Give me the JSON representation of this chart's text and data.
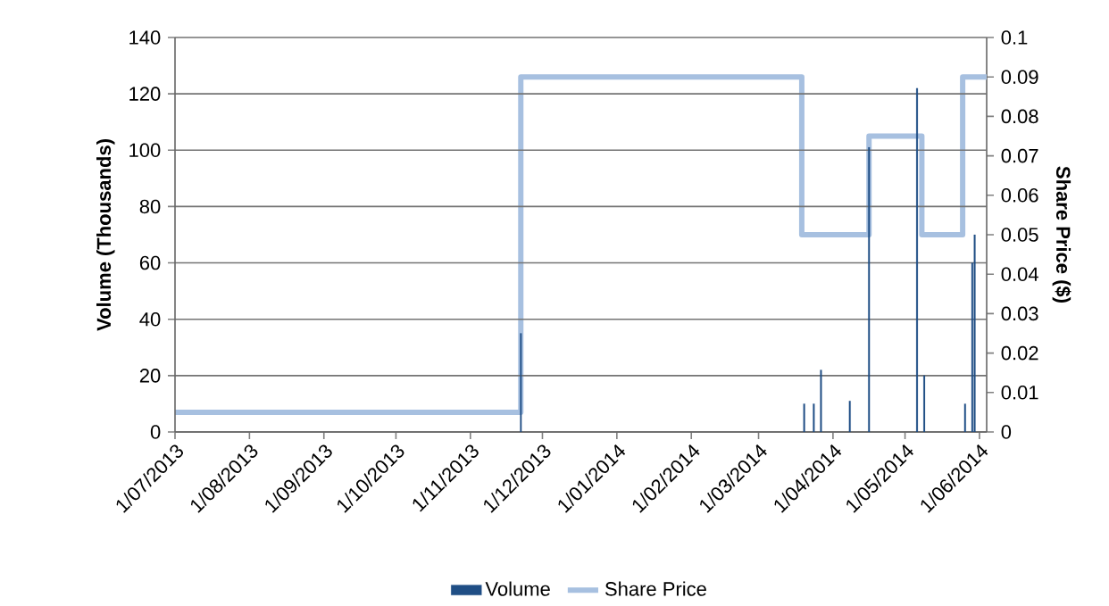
{
  "chart_data": {
    "type": "bar",
    "ylabel": "Volume (Thousands)",
    "y2label": "Share Price ($)",
    "series": [
      {
        "name": "Volume",
        "color": "#1f4e85",
        "x": [
          "2013-11-22",
          "2014-03-20",
          "2014-03-24",
          "2014-03-27",
          "2014-04-08",
          "2014-04-16",
          "2014-05-06",
          "2014-05-09",
          "2014-05-26",
          "2014-05-29",
          "2014-05-30"
        ],
        "values": [
          35,
          10,
          10,
          22,
          11,
          101,
          122,
          20,
          10,
          60,
          70
        ]
      },
      {
        "name": "Share Price",
        "type": "step",
        "axis": "y2",
        "color": "#a7c0e0",
        "x": [
          "2013-07-01",
          "2013-11-22",
          "2014-03-19",
          "2014-04-16",
          "2014-05-08",
          "2014-05-25",
          "2014-06-04"
        ],
        "values": [
          0.005,
          0.09,
          0.05,
          0.075,
          0.05,
          0.09,
          0.09
        ]
      }
    ],
    "xlim": [
      "2013-07-01",
      "2014-06-04"
    ],
    "xticks": [
      {
        "value": "2013-07-01",
        "label": "1/07/2013"
      },
      {
        "value": "2013-08-01",
        "label": "1/08/2013"
      },
      {
        "value": "2013-09-01",
        "label": "1/09/2013"
      },
      {
        "value": "2013-10-01",
        "label": "1/10/2013"
      },
      {
        "value": "2013-11-01",
        "label": "1/11/2013"
      },
      {
        "value": "2013-12-01",
        "label": "1/12/2013"
      },
      {
        "value": "2014-01-01",
        "label": "1/01/2014"
      },
      {
        "value": "2014-02-01",
        "label": "1/02/2014"
      },
      {
        "value": "2014-03-01",
        "label": "1/03/2014"
      },
      {
        "value": "2014-04-01",
        "label": "1/04/2014"
      },
      {
        "value": "2014-05-01",
        "label": "1/05/2014"
      },
      {
        "value": "2014-06-01",
        "label": "1/06/2014"
      }
    ],
    "ylim": [
      0,
      140
    ],
    "yticks": [
      0,
      20,
      40,
      60,
      80,
      100,
      120,
      140
    ],
    "y2lim": [
      0,
      0.1
    ],
    "y2ticks": [
      0,
      0.01,
      0.02,
      0.03,
      0.04,
      0.05,
      0.06,
      0.07,
      0.08,
      0.09,
      0.1
    ],
    "grid": "y",
    "legend": "bottom"
  }
}
